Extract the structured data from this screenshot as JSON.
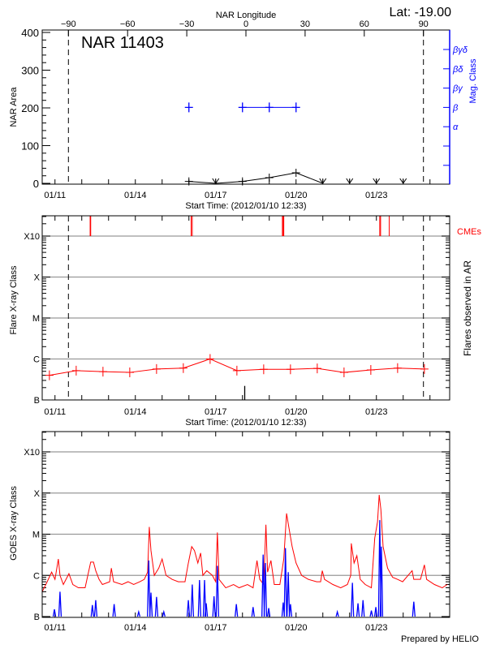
{
  "title": {
    "region": "NAR 11403",
    "latitude": "Lat: -19.00"
  },
  "footer": "Prepared by HELIO",
  "colors": {
    "area": "#000000",
    "mag_class": "#0000ff",
    "flare": "#ff0000",
    "cme": "#ff0000",
    "goes_long": "#ff0000",
    "goes_short": "#0000ff",
    "grid": "#999999"
  },
  "chart_data": [
    {
      "type": "line",
      "xlabel": "Start Time: (2012/01/10 12:33)",
      "top_xlabel": "NAR Longitude",
      "ylabel": "NAR Area",
      "y2label": "Mag. Class",
      "ylim": [
        0,
        400
      ],
      "yticks": [
        0,
        100,
        200,
        300,
        400
      ],
      "x_ticks": [
        "01/11",
        "01/14",
        "01/17",
        "01/20",
        "01/23"
      ],
      "lon_ticks": [
        -90,
        -60,
        -30,
        0,
        30,
        60,
        90
      ],
      "limb_longitudes": [
        -90,
        90
      ],
      "mag_classes": [
        "α",
        "β",
        "βγ",
        "βδ",
        "βγδ"
      ],
      "area": {
        "x": [
          "01/16 00:00",
          "01/17 00:00",
          "01/18 00:00",
          "01/19 00:00",
          "01/20 00:00",
          "01/21 00:00",
          "01/22 00:00",
          "01/23 00:00",
          "01/24 00:00"
        ],
        "values": [
          5,
          0,
          5,
          15,
          28,
          0,
          0,
          0,
          0
        ]
      },
      "mag_class": {
        "x": [
          "01/16 00:00",
          "01/18 00:00",
          "01/19 00:00",
          "01/20 00:00"
        ],
        "values": [
          "β",
          "β",
          "β",
          "β"
        ]
      }
    },
    {
      "type": "line",
      "xlabel": "Start Time: (2012/01/10 12:33)",
      "ylabel": "Flare X-ray Class",
      "y2label": "Flares observed in AR",
      "cme_label": "CMEs",
      "ytick_labels": [
        "B",
        "C",
        "M",
        "X",
        "X10"
      ],
      "x_ticks": [
        "01/11",
        "01/14",
        "01/17",
        "01/20",
        "01/23"
      ],
      "flare_class": {
        "x": [
          "01/10 19:00",
          "01/11 19:00",
          "01/12 19:00",
          "01/13 19:00",
          "01/14 19:00",
          "01/15 19:00",
          "01/16 19:00",
          "01/17 19:00",
          "01/18 19:00",
          "01/19 19:00",
          "01/20 19:00",
          "01/21 19:00",
          "01/22 19:00",
          "01/23 19:00",
          "01/24 19:00"
        ],
        "values": [
          "B4.0",
          "B5.2",
          "B4.9",
          "B4.7",
          "B5.7",
          "B6.0",
          "C1.0",
          "B5.2",
          "B5.6",
          "B5.6",
          "B5.9",
          "B4.7",
          "B5.4",
          "B6.0",
          "B5.7"
        ]
      },
      "flares_observed": [
        {
          "time": "01/18 02:00",
          "class": "B2.2"
        }
      ],
      "cmes": [
        "01/12 07:30",
        "01/12 08:00",
        "01/16 02:00",
        "01/16 03:00",
        "01/19 11:45",
        "01/19 12:30",
        "01/19 13:00",
        "01/23 03:00",
        "01/23 03:45",
        "01/23 11:30"
      ]
    },
    {
      "type": "line",
      "ylabel": "GOES X-ray Class",
      "ytick_labels": [
        "B",
        "C",
        "M",
        "X",
        "X10"
      ],
      "x_ticks": [
        "01/11",
        "01/14",
        "01/17",
        "01/20",
        "01/23"
      ],
      "series": [
        {
          "color": "#ff0000",
          "x": [
            "01/10 12:33",
            "01/10 17:00",
            "01/10 21:00",
            "01/11 00:00",
            "01/11 03:00",
            "01/11 04:30",
            "01/11 07:30",
            "01/11 12:30",
            "01/11 16:00",
            "01/11 21:00",
            "01/12 03:00",
            "01/12 08:00",
            "01/12 10:30",
            "01/12 12:30",
            "01/12 15:30",
            "01/12 18:30",
            "01/13 01:00",
            "01/13 02:30",
            "01/13 04:30",
            "01/13 12:00",
            "01/13 17:30",
            "01/13 22:30",
            "01/14 04:00",
            "01/14 08:00",
            "01/14 11:00",
            "01/14 12:30",
            "01/14 14:00",
            "01/14 17:00",
            "01/14 21:00",
            "01/15 00:00",
            "01/15 03:30",
            "01/15 09:00",
            "01/15 14:30",
            "01/15 20:30",
            "01/15 23:30",
            "01/16 02:30",
            "01/16 05:00",
            "01/16 08:00",
            "01/16 10:30",
            "01/16 12:30",
            "01/16 16:00",
            "01/16 21:00",
            "01/17 00:00",
            "01/17 01:30",
            "01/17 03:00",
            "01/17 09:00",
            "01/17 16:00",
            "01/17 21:00",
            "01/18 04:30",
            "01/18 09:30",
            "01/18 13:00",
            "01/18 15:30",
            "01/18 19:00",
            "01/18 21:00",
            "01/18 22:30",
            "01/19 01:30",
            "01/19 04:30",
            "01/19 09:30",
            "01/19 13:00",
            "01/19 15:30",
            "01/19 17:30",
            "01/19 20:30",
            "01/20 00:00",
            "01/20 05:00",
            "01/20 11:00",
            "01/20 18:30",
            "01/20 22:00",
            "01/20 23:30",
            "01/21 01:30",
            "01/21 09:00",
            "01/21 16:00",
            "01/21 22:00",
            "01/22 01:00",
            "01/22 01:30",
            "01/22 04:00",
            "01/22 06:30",
            "01/22 09:30",
            "01/22 14:00",
            "01/22 19:30",
            "01/22 22:30",
            "01/23 01:00",
            "01/23 02:30",
            "01/23 04:00",
            "01/23 06:00",
            "01/23 10:00",
            "01/23 14:30",
            "01/23 19:00",
            "01/23 23:30",
            "01/24 08:00",
            "01/24 09:30",
            "01/24 15:30",
            "01/24 19:00",
            "01/24 21:00",
            "01/25 04:00",
            "01/25 11:00",
            "01/25 15:30"
          ],
          "values": [
            "B4",
            "B7",
            "C1.2",
            "B8",
            "C2.5",
            "C1",
            "B6",
            "C1.1",
            "B6",
            "B5",
            "B5",
            "C2.1",
            "C2.1",
            "C1.3",
            "B8",
            "B6",
            "B7",
            "C1.5",
            "B7",
            "B6",
            "B7",
            "B6",
            "B7",
            "B8",
            "C1.2",
            "M1.5",
            "C4",
            "C1",
            "C1.5",
            "C2.5",
            "C1",
            "B8",
            "B7",
            "B7",
            "C2",
            "C5",
            "C4",
            "C2",
            "C3.5",
            "C1",
            "C1.3",
            "C1",
            "B7",
            "M1.1",
            "B8",
            "B5",
            "B6",
            "B5",
            "B6",
            "B5",
            "C2.3",
            "B8",
            "B6",
            "M1.7",
            "C1.2",
            "C2.3",
            "B6",
            "B6",
            "C2.5",
            "M3.2",
            "M1.5",
            "C5",
            "C2",
            "C1",
            "B8",
            "B7",
            "B7",
            "C1.3",
            "B8",
            "B6",
            "B5",
            "B6",
            "C1",
            "C6",
            "C2",
            "C3",
            "B8",
            "B6",
            "B5",
            "C8",
            "M2",
            "M9",
            "M4",
            "C5",
            "C1.5",
            "B9",
            "B8",
            "B7",
            "C1.3",
            "B8",
            "B8",
            "C1.8",
            "B8",
            "B6",
            "B5",
            "B6"
          ]
        },
        {
          "color": "#0000ff",
          "x": [
            "01/10 23:30",
            "01/11 04:30",
            "01/12 09:30",
            "01/12 12:30",
            "01/13 05:00",
            "01/14 03:00",
            "01/14 12:00",
            "01/14 14:00",
            "01/14 19:00",
            "01/15 01:30",
            "01/15 23:30",
            "01/16 03:00",
            "01/16 09:30",
            "01/16 14:00",
            "01/16 15:30",
            "01/16 22:30",
            "01/17 01:30",
            "01/17 18:30",
            "01/18 09:30",
            "01/18 18:30",
            "01/18 20:30",
            "01/18 23:30",
            "01/19 12:30",
            "01/19 14:30",
            "01/19 17:00",
            "01/19 19:00",
            "01/21 13:00",
            "01/22 02:30",
            "01/22 07:30",
            "01/22 12:00",
            "01/22 19:30",
            "01/22 23:30",
            "01/23 03:00",
            "01/23 04:30",
            "01/24 09:30"
          ],
          "values": [
            "B1.5",
            "B4",
            "B1.9",
            "B2.5",
            "B2",
            "B1.3",
            "C2.3",
            "B3.8",
            "B3",
            "B1.3",
            "B2.5",
            "B6",
            "B7.7",
            "B7.7",
            "B2.1",
            "B3.1",
            "C1.7",
            "B2",
            "B1.7",
            "C3.2",
            "C2",
            "B1.6",
            "B2.2",
            "C4.6",
            "C1.2",
            "B2",
            "B1.3",
            "B6.6",
            "B2.1",
            "B2.5",
            "B1.4",
            "B1.7",
            "M2.2",
            "C5",
            "B2.3"
          ]
        }
      ]
    }
  ]
}
